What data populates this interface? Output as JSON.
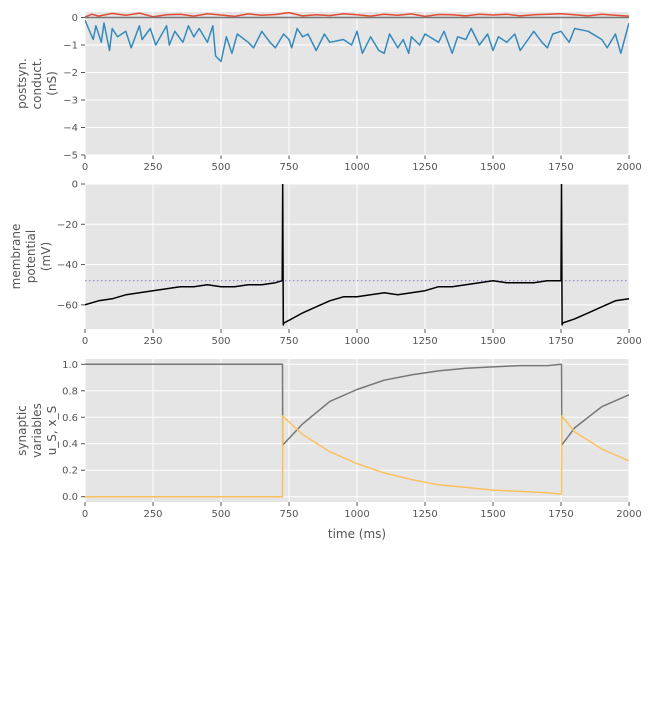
{
  "chart_data": [
    {
      "type": "line",
      "ylabel_lines": [
        "postsyn.",
        "conduct.",
        "(nS)"
      ],
      "xlim": [
        0,
        2000
      ],
      "ylim": [
        -5,
        0.2
      ],
      "xticks": [
        "0",
        "250",
        "500",
        "750",
        "1000",
        "1250",
        "1500",
        "1750",
        "2000"
      ],
      "yticks": [
        "0",
        "−1",
        "−2",
        "−3",
        "−4",
        "−5"
      ],
      "grid": true,
      "series": [
        {
          "color": "#E24A33",
          "note": "excitatory conductance, small positive fluctuations",
          "x": [
            0,
            25,
            50,
            100,
            150,
            200,
            250,
            300,
            350,
            400,
            450,
            500,
            550,
            600,
            650,
            700,
            750,
            800,
            850,
            900,
            950,
            1000,
            1050,
            1100,
            1150,
            1200,
            1250,
            1300,
            1350,
            1400,
            1450,
            1500,
            1550,
            1600,
            1650,
            1700,
            1750,
            1800,
            1850,
            1900,
            1950,
            2000
          ],
          "y": [
            0.02,
            0.12,
            0.05,
            0.15,
            0.08,
            0.16,
            0.03,
            0.1,
            0.12,
            0.05,
            0.14,
            0.09,
            0.04,
            0.13,
            0.08,
            0.11,
            0.18,
            0.06,
            0.1,
            0.07,
            0.14,
            0.1,
            0.05,
            0.12,
            0.08,
            0.13,
            0.04,
            0.11,
            0.1,
            0.06,
            0.12,
            0.09,
            0.12,
            0.06,
            0.1,
            0.12,
            0.14,
            0.1,
            0.06,
            0.12,
            0.08,
            0.05
          ]
        },
        {
          "color": "#348ABD",
          "note": "inhibitory conductance, negative spikes",
          "x": [
            0,
            30,
            40,
            60,
            70,
            90,
            100,
            120,
            150,
            170,
            200,
            210,
            240,
            260,
            300,
            310,
            330,
            360,
            380,
            400,
            420,
            450,
            470,
            480,
            500,
            520,
            540,
            560,
            600,
            620,
            650,
            680,
            700,
            730,
            750,
            760,
            780,
            800,
            820,
            850,
            880,
            900,
            950,
            980,
            1000,
            1020,
            1050,
            1080,
            1100,
            1120,
            1150,
            1170,
            1190,
            1200,
            1230,
            1250,
            1300,
            1320,
            1350,
            1370,
            1400,
            1420,
            1450,
            1480,
            1500,
            1520,
            1550,
            1580,
            1600,
            1650,
            1680,
            1700,
            1720,
            1750,
            1780,
            1800,
            1850,
            1900,
            1920,
            1950,
            1970,
            2000
          ],
          "y": [
            -0.1,
            -0.8,
            -0.3,
            -0.9,
            -0.2,
            -1.2,
            -0.4,
            -0.7,
            -0.5,
            -1.1,
            -0.3,
            -0.8,
            -0.4,
            -1.0,
            -0.3,
            -1.0,
            -0.5,
            -0.9,
            -0.3,
            -0.7,
            -0.4,
            -0.9,
            -0.3,
            -1.4,
            -1.6,
            -0.7,
            -1.3,
            -0.6,
            -0.9,
            -1.1,
            -0.5,
            -0.9,
            -1.1,
            -0.6,
            -0.8,
            -1.1,
            -0.4,
            -0.7,
            -0.6,
            -1.2,
            -0.6,
            -0.9,
            -0.8,
            -1.0,
            -0.5,
            -1.3,
            -0.7,
            -1.2,
            -1.3,
            -0.6,
            -1.1,
            -0.8,
            -1.3,
            -0.7,
            -1.0,
            -0.6,
            -0.9,
            -0.5,
            -1.3,
            -0.7,
            -0.8,
            -0.4,
            -1.0,
            -0.6,
            -1.2,
            -0.7,
            -0.9,
            -0.6,
            -1.2,
            -0.5,
            -0.9,
            -1.1,
            -0.6,
            -0.5,
            -0.9,
            -0.4,
            -0.5,
            -0.8,
            -1.1,
            -0.6,
            -1.3,
            -0.2
          ]
        },
        {
          "color": "#777777",
          "note": "total/net conductance near zero",
          "x": [
            0,
            2000
          ],
          "y": [
            0.0,
            0.0
          ]
        }
      ]
    },
    {
      "type": "line",
      "ylabel_lines": [
        "membrane",
        "potential",
        "(mV)"
      ],
      "xlim": [
        0,
        2000
      ],
      "ylim": [
        -72,
        0
      ],
      "xticks": [
        "0",
        "250",
        "500",
        "750",
        "1000",
        "1250",
        "1500",
        "1750",
        "2000"
      ],
      "yticks": [
        "0",
        "−20",
        "−40",
        "−60"
      ],
      "grid": true,
      "threshold": {
        "y": -48,
        "color": "#8888CC",
        "style": "dotted"
      },
      "series": [
        {
          "color": "#000000",
          "x": [
            0,
            50,
            100,
            150,
            200,
            250,
            300,
            350,
            400,
            450,
            500,
            550,
            600,
            650,
            700,
            725,
            727,
            729,
            731,
            760,
            800,
            850,
            900,
            950,
            1000,
            1050,
            1100,
            1150,
            1200,
            1250,
            1300,
            1350,
            1400,
            1450,
            1500,
            1550,
            1600,
            1650,
            1700,
            1750,
            1752,
            1754,
            1756,
            1800,
            1850,
            1900,
            1950,
            2000
          ],
          "y": [
            -60,
            -58,
            -57,
            -55,
            -54,
            -53,
            -52,
            -51,
            -51,
            -50,
            -51,
            -51,
            -50,
            -50,
            -49,
            -48,
            0,
            -70,
            -69,
            -67,
            -64,
            -61,
            -58,
            -56,
            -56,
            -55,
            -54,
            -55,
            -54,
            -53,
            -51,
            -51,
            -50,
            -49,
            -48,
            -49,
            -49,
            -49,
            -48,
            -48,
            0,
            -70,
            -69,
            -67,
            -64,
            -61,
            -58,
            -57
          ]
        }
      ]
    },
    {
      "type": "line",
      "ylabel_lines": [
        "synaptic",
        "variables",
        "u_S, x_S"
      ],
      "xlim": [
        0,
        2000
      ],
      "ylim": [
        -0.04,
        1.04
      ],
      "xticks": [
        "0",
        "250",
        "500",
        "750",
        "1000",
        "1250",
        "1500",
        "1750",
        "2000"
      ],
      "yticks": [
        "0.0",
        "0.2",
        "0.4",
        "0.6",
        "0.8",
        "1.0"
      ],
      "xlabel": "time (ms)",
      "grid": true,
      "series": [
        {
          "color": "#777777",
          "note": "x_S resources",
          "x": [
            0,
            726,
            727,
            800,
            900,
            1000,
            1100,
            1200,
            1300,
            1400,
            1500,
            1600,
            1700,
            1752,
            1753,
            1800,
            1900,
            2000
          ],
          "y": [
            1.0,
            1.0,
            0.39,
            0.55,
            0.72,
            0.81,
            0.88,
            0.92,
            0.95,
            0.97,
            0.98,
            0.99,
            0.99,
            1.0,
            0.39,
            0.52,
            0.68,
            0.77
          ]
        },
        {
          "color": "#FBC15E",
          "note": "u_S utilization",
          "x": [
            0,
            726,
            727,
            800,
            900,
            1000,
            1100,
            1200,
            1300,
            1400,
            1500,
            1600,
            1700,
            1752,
            1753,
            1800,
            1900,
            2000
          ],
          "y": [
            0.0,
            0.0,
            0.61,
            0.47,
            0.34,
            0.25,
            0.18,
            0.13,
            0.09,
            0.07,
            0.05,
            0.04,
            0.03,
            0.02,
            0.61,
            0.49,
            0.36,
            0.27
          ]
        }
      ]
    }
  ]
}
